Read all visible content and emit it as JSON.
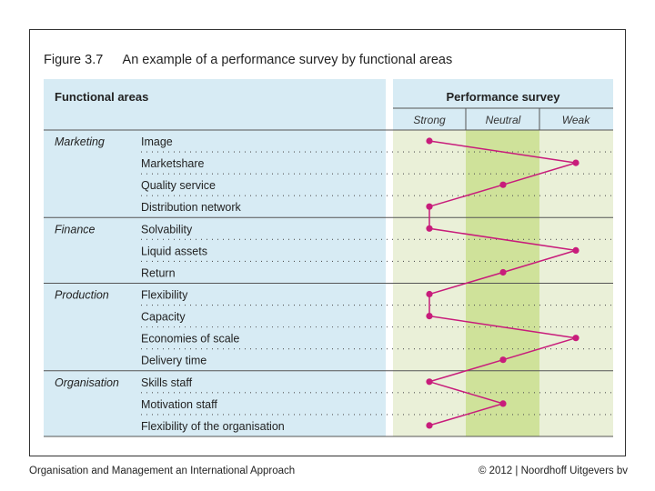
{
  "figure": {
    "number": "Figure 3.7",
    "caption": "An example of a performance survey by functional areas"
  },
  "footer": {
    "left": "Organisation and Management an International Approach",
    "right": "© 2012 | Noordhoff Uitgevers bv"
  },
  "colors": {
    "left_bg": "#d7ebf4",
    "strong_bg": "#eaf0d8",
    "neutral_bg": "#cfe29a",
    "weak_bg": "#eaf0d8",
    "line": "#c81c7b",
    "marker": "#c81c7b",
    "rule": "#555555"
  },
  "chart_data": {
    "type": "line",
    "title": "An example of a performance survey by functional areas",
    "left_header": "Functional areas",
    "right_header": "Performance survey",
    "scale": [
      "Strong",
      "Neutral",
      "Weak"
    ],
    "groups": [
      {
        "name": "Marketing",
        "items": [
          {
            "label": "Image",
            "score": "Strong"
          },
          {
            "label": "Marketshare",
            "score": "Weak"
          },
          {
            "label": "Quality service",
            "score": "Neutral"
          },
          {
            "label": "Distribution network",
            "score": "Strong"
          }
        ]
      },
      {
        "name": "Finance",
        "items": [
          {
            "label": "Solvability",
            "score": "Strong"
          },
          {
            "label": "Liquid assets",
            "score": "Weak"
          },
          {
            "label": "Return",
            "score": "Neutral"
          }
        ]
      },
      {
        "name": "Production",
        "items": [
          {
            "label": "Flexibility",
            "score": "Strong"
          },
          {
            "label": "Capacity",
            "score": "Strong"
          },
          {
            "label": "Economies of scale",
            "score": "Weak"
          },
          {
            "label": "Delivery time",
            "score": "Neutral"
          }
        ]
      },
      {
        "name": "Organisation",
        "items": [
          {
            "label": "Skills staff",
            "score": "Strong"
          },
          {
            "label": "Motivation staff",
            "score": "Neutral"
          },
          {
            "label": "Flexibility of the organisation",
            "score": "Strong"
          }
        ]
      }
    ]
  }
}
